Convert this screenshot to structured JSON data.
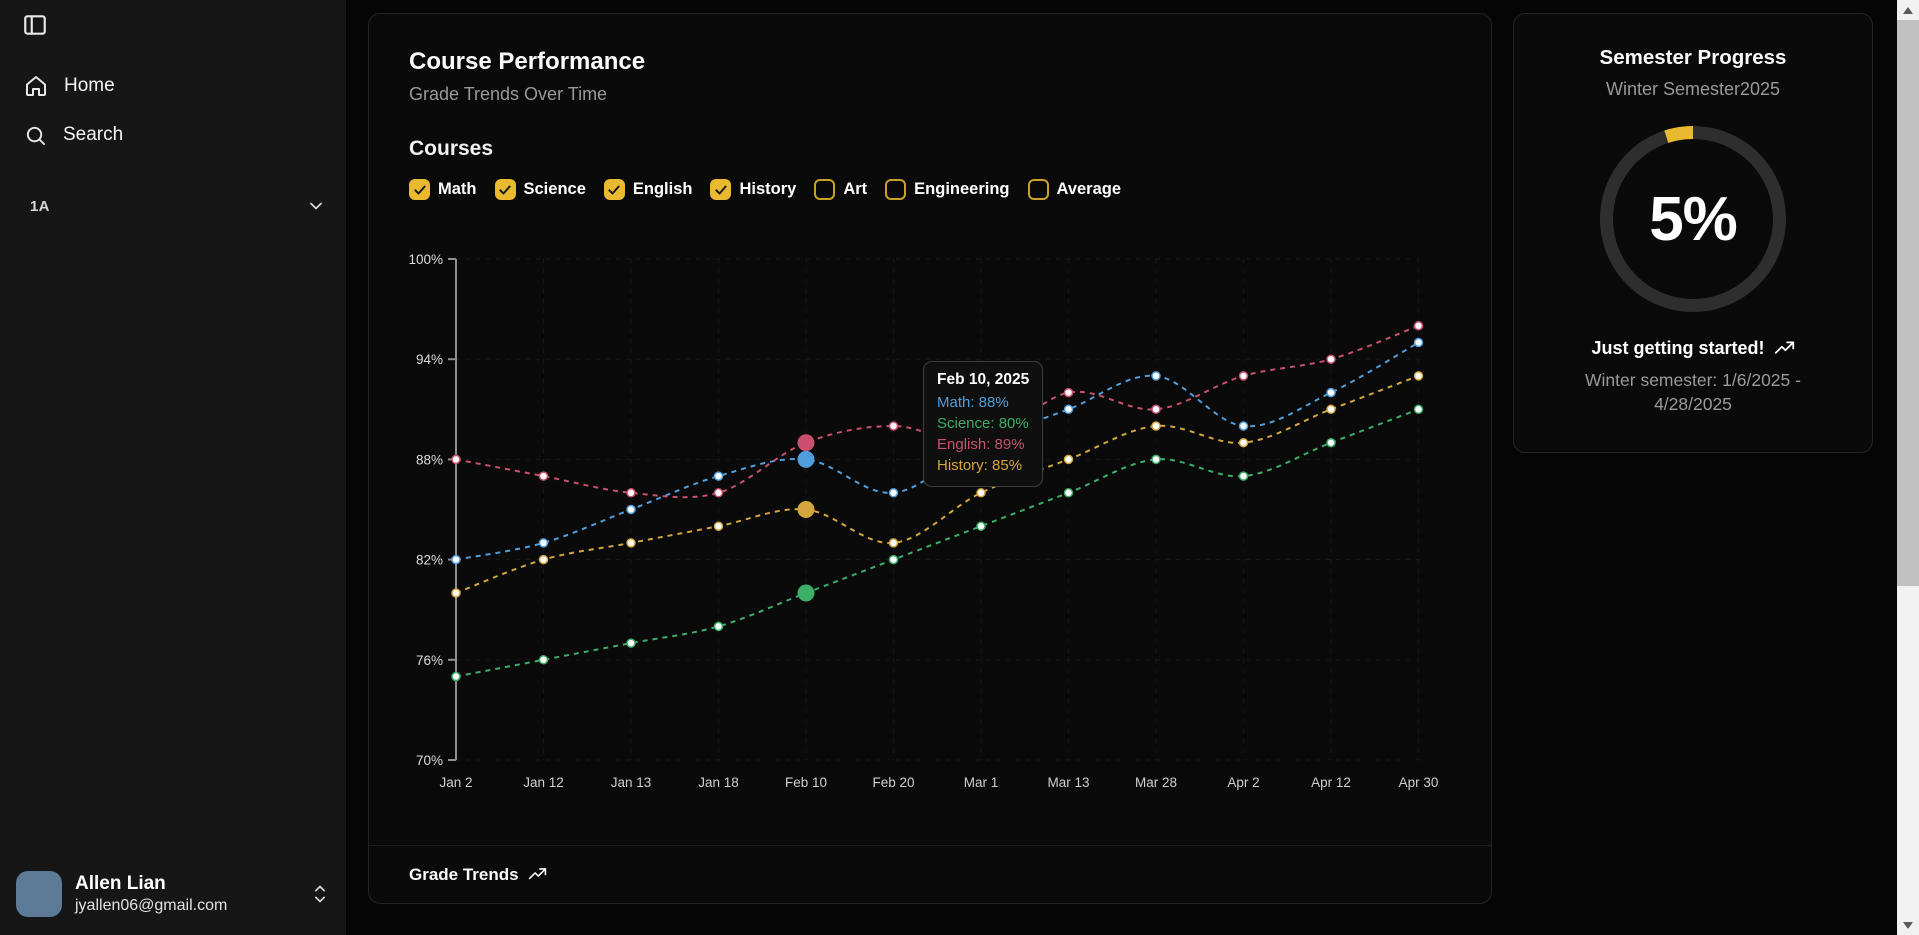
{
  "sidebar": {
    "items": [
      {
        "label": "Home",
        "icon": "home-icon"
      },
      {
        "label": "Search",
        "icon": "search-icon"
      }
    ],
    "section": {
      "label": "1A"
    },
    "user": {
      "name": "Allen Lian",
      "email": "jyallen06@gmail.com"
    }
  },
  "main_card": {
    "title": "Course Performance",
    "subtitle": "Grade Trends Over Time",
    "courses_heading": "Courses",
    "checkboxes": [
      {
        "label": "Math",
        "checked": true
      },
      {
        "label": "Science",
        "checked": true
      },
      {
        "label": "English",
        "checked": true
      },
      {
        "label": "History",
        "checked": true
      },
      {
        "label": "Art",
        "checked": false
      },
      {
        "label": "Engineering",
        "checked": false
      },
      {
        "label": "Average",
        "checked": false
      }
    ],
    "footer_label": "Grade Trends"
  },
  "chart_data": {
    "type": "line",
    "title": "Grade Trends Over Time",
    "categories": [
      "Jan 2",
      "Jan 12",
      "Jan 13",
      "Jan 18",
      "Feb 10",
      "Feb 20",
      "Mar 1",
      "Mar 13",
      "Mar 28",
      "Apr 2",
      "Apr 12",
      "Apr 30"
    ],
    "series": [
      {
        "name": "Math",
        "color": "#4f9fdd",
        "values": [
          82,
          83,
          85,
          87,
          88,
          86,
          89,
          91,
          93,
          90,
          92,
          95
        ]
      },
      {
        "name": "Science",
        "color": "#3cae68",
        "values": [
          75,
          76,
          77,
          78,
          80,
          82,
          84,
          86,
          88,
          87,
          89,
          91
        ]
      },
      {
        "name": "English",
        "color": "#c9506e",
        "values": [
          88,
          87,
          86,
          86,
          89,
          90,
          89,
          92,
          91,
          93,
          94,
          96
        ]
      },
      {
        "name": "History",
        "color": "#d3a73d",
        "values": [
          80,
          82,
          83,
          84,
          85,
          83,
          86,
          88,
          90,
          89,
          91,
          93
        ]
      }
    ],
    "ylim": [
      70,
      100
    ],
    "y_ticks": [
      "100%",
      "94%",
      "88%",
      "82%",
      "76%",
      "70%"
    ],
    "y_tick_values": [
      100,
      94,
      88,
      82,
      76,
      70
    ],
    "grid": true,
    "line_style": "dashed",
    "legend_position": "none",
    "highlight_index": 4,
    "tooltip": {
      "title": "Feb 10, 2025",
      "rows": [
        {
          "label": "Math",
          "value": "88%",
          "color": "#4f9fdd"
        },
        {
          "label": "Science",
          "value": "80%",
          "color": "#3cae68"
        },
        {
          "label": "English",
          "value": "89%",
          "color": "#c9506e"
        },
        {
          "label": "History",
          "value": "85%",
          "color": "#d3a73d"
        }
      ]
    }
  },
  "right_card": {
    "title": "Semester Progress",
    "subtitle": "Winter Semester2025",
    "progress_percent": "5%",
    "progress_value": 5,
    "accent_color": "#e9ba2f",
    "message": "Just getting started!",
    "date_range": "Winter semester: 1/6/2025 - 4/28/2025"
  }
}
